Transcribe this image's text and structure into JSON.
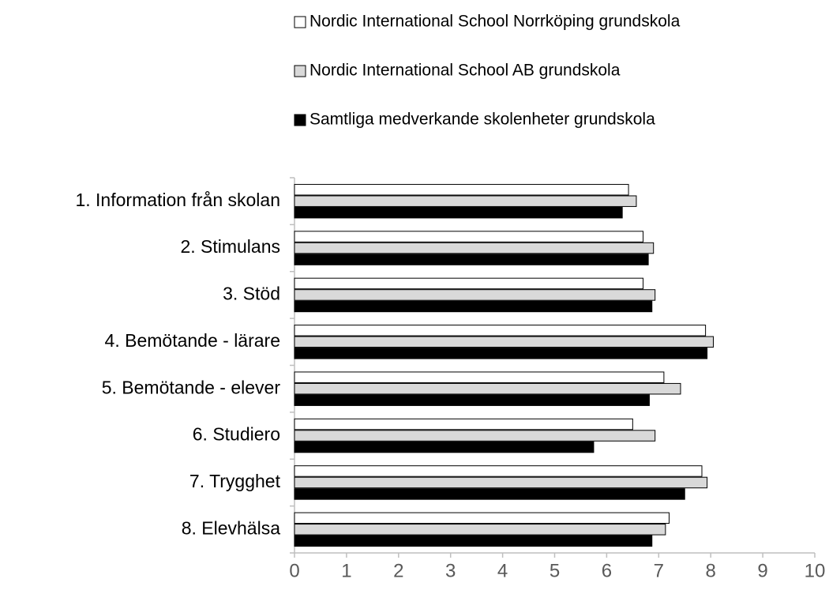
{
  "chart_data": {
    "type": "bar",
    "orientation": "horizontal",
    "categories": [
      "1. Information från skolan",
      "2. Stimulans",
      "3. Stöd",
      "4. Bemötande - lärare",
      "5. Bemötande - elever",
      "6. Studiero",
      "7. Trygghet",
      "8. Elevhälsa"
    ],
    "series": [
      {
        "name": "Nordic International School Norrköping grundskola",
        "color": "#ffffff",
        "values": [
          6.42,
          6.7,
          6.7,
          7.9,
          7.1,
          6.5,
          7.83,
          7.2
        ]
      },
      {
        "name": "Nordic International School AB grundskola",
        "color": "#d9d9d9",
        "values": [
          6.57,
          6.9,
          6.93,
          8.05,
          7.42,
          6.93,
          7.93,
          7.13
        ]
      },
      {
        "name": "Samtliga medverkande skolenheter grundskola",
        "color": "#000000",
        "values": [
          6.3,
          6.8,
          6.87,
          7.93,
          6.82,
          5.75,
          7.5,
          6.87
        ]
      }
    ],
    "xlim": [
      0,
      10
    ],
    "xticks": [
      0,
      1,
      2,
      3,
      4,
      5,
      6,
      7,
      8,
      9,
      10
    ],
    "grid": false,
    "legend": "top"
  }
}
